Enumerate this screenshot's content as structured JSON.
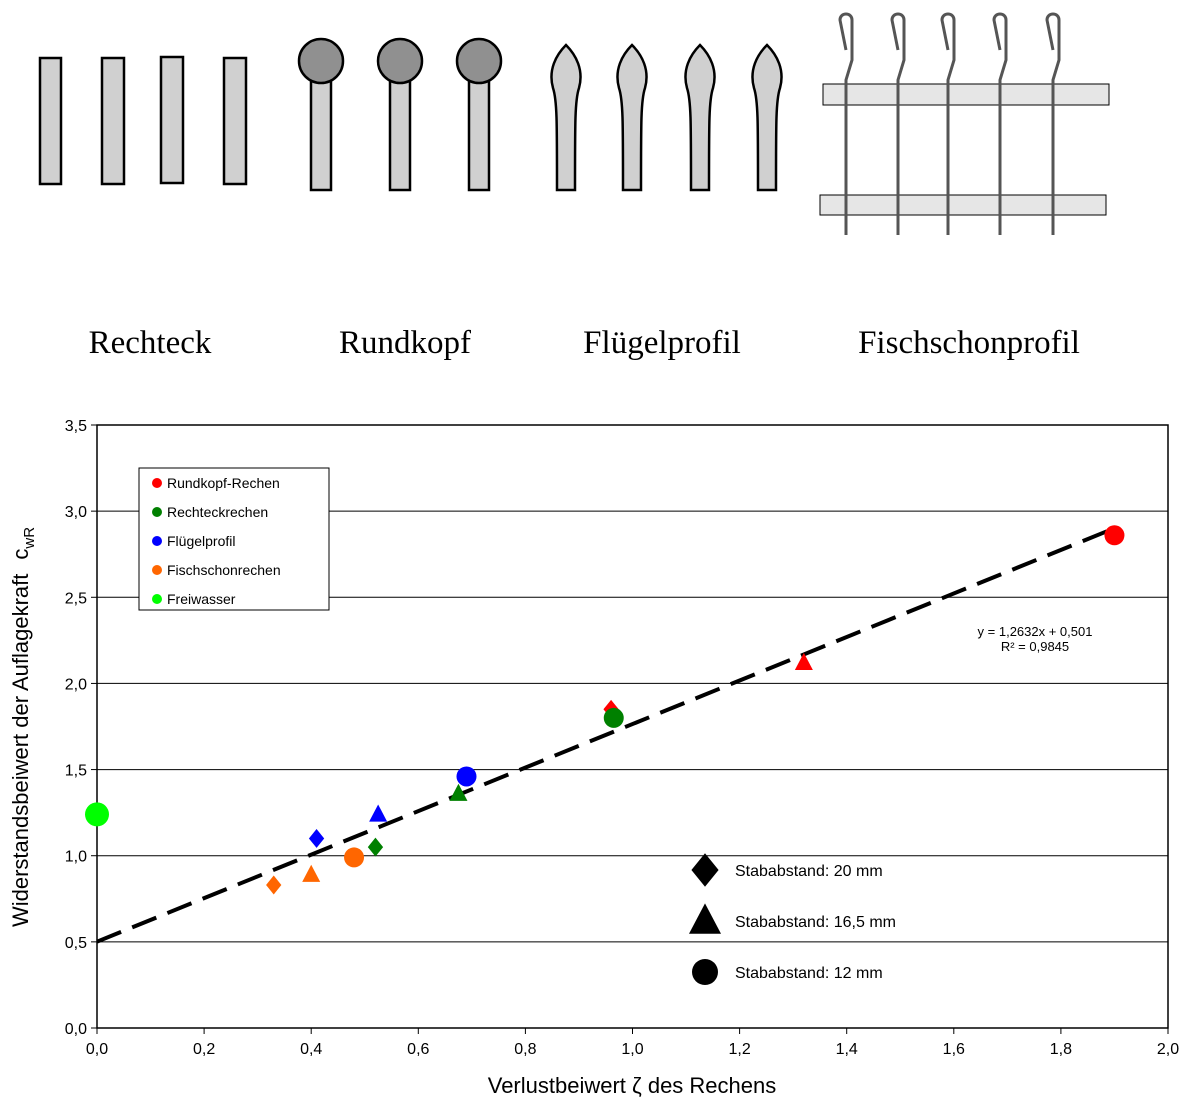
{
  "profile_labels": [
    "Rechteck",
    "Rundkopf",
    "Flügelprofil",
    "Fischschonprofil"
  ],
  "chart_data": {
    "type": "scatter",
    "xlabel": "Verlustbeiwert ζ des Rechens",
    "ylabel": "Widerstandsbeiwert  der Auflagekraft",
    "ylabel_symbol": "c",
    "ylabel_subscript": "wR",
    "xlim": [
      0,
      2
    ],
    "ylim": [
      0,
      3.5
    ],
    "xticks": [
      {
        "value": 0,
        "label": "0,0"
      },
      {
        "value": 0.2,
        "label": "0,2"
      },
      {
        "value": 0.4,
        "label": "0,4"
      },
      {
        "value": 0.6,
        "label": "0,6"
      },
      {
        "value": 0.8,
        "label": "0,8"
      },
      {
        "value": 1,
        "label": "1,0"
      },
      {
        "value": 1.2,
        "label": "1,2"
      },
      {
        "value": 1.4,
        "label": "1,4"
      },
      {
        "value": 1.6,
        "label": "1,6"
      },
      {
        "value": 1.8,
        "label": "1,8"
      },
      {
        "value": 2,
        "label": "2,0"
      }
    ],
    "yticks": [
      {
        "value": 0,
        "label": "0,0"
      },
      {
        "value": 0.5,
        "label": "0,5"
      },
      {
        "value": 1,
        "label": "1,0"
      },
      {
        "value": 1.5,
        "label": "1,5"
      },
      {
        "value": 2,
        "label": "2,0"
      },
      {
        "value": 2.5,
        "label": "2,5"
      },
      {
        "value": 3,
        "label": "3,0"
      },
      {
        "value": 3.5,
        "label": "3,5"
      }
    ],
    "grid": true,
    "series": [
      {
        "name": "Rundkopf-Rechen",
        "color": "#ff0000",
        "x": [
          1.9,
          1.32,
          0.96
        ],
        "values": [
          2.86,
          2.12,
          1.85
        ],
        "markers": [
          "circle",
          "triangle",
          "diamond"
        ]
      },
      {
        "name": "Rechteckrechen",
        "color": "#008000",
        "x": [
          0.965,
          0.675,
          0.52
        ],
        "values": [
          1.8,
          1.36,
          1.05
        ],
        "markers": [
          "circle",
          "triangle",
          "diamond"
        ]
      },
      {
        "name": "Flügelprofil",
        "color": "#0000ff",
        "x": [
          0.69,
          0.525,
          0.41
        ],
        "values": [
          1.46,
          1.24,
          1.1
        ],
        "markers": [
          "circle",
          "triangle",
          "diamond"
        ]
      },
      {
        "name": "Fischschonrechen",
        "color": "#ff6600",
        "x": [
          0.48,
          0.4,
          0.33
        ],
        "values": [
          0.99,
          0.89,
          0.83
        ],
        "markers": [
          "circle",
          "triangle",
          "diamond"
        ]
      },
      {
        "name": "Freiwasser",
        "color": "#00ff00",
        "x": [
          0
        ],
        "values": [
          1.24
        ],
        "markers": [
          "circle"
        ]
      }
    ],
    "trendline": {
      "x": [
        0,
        1.9
      ],
      "values": [
        0.501,
        2.901
      ]
    },
    "annotations": [
      "y = 1,2632x + 0,501",
      "R² = 0,9845"
    ],
    "shape_legend": [
      {
        "label": "Stababstand: 20 mm",
        "marker": "diamond"
      },
      {
        "label": "Stababstand: 16,5 mm",
        "marker": "triangle"
      },
      {
        "label": "Stababstand: 12 mm",
        "marker": "circle"
      }
    ]
  }
}
